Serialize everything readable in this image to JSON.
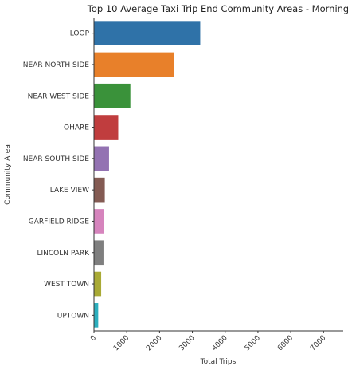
{
  "chart_data": {
    "type": "bar",
    "orientation": "horizontal",
    "title": "Top 10 Average Taxi Trip End Community Areas - Morning",
    "xlabel": "Total Trips",
    "ylabel": "Community Area",
    "xlim": [
      0,
      7600
    ],
    "xticks": [
      "0",
      "1000",
      "2000",
      "3000",
      "4000",
      "5000",
      "6000",
      "7000"
    ],
    "grid": false,
    "categories": [
      "LOOP",
      "NEAR NORTH SIDE",
      "NEAR WEST SIDE",
      "OHARE",
      "NEAR SOUTH SIDE",
      "LAKE VIEW",
      "GARFIELD RIDGE",
      "LINCOLN PARK",
      "WEST TOWN",
      "UPTOWN"
    ],
    "values": [
      3240,
      2440,
      1110,
      740,
      460,
      330,
      300,
      290,
      220,
      130
    ],
    "colors": [
      "#2f72a8",
      "#e8802a",
      "#3a923a",
      "#c03d3e",
      "#9372b2",
      "#845b53",
      "#d684bd",
      "#7f7f7f",
      "#a9aa35",
      "#2cafbe"
    ]
  }
}
